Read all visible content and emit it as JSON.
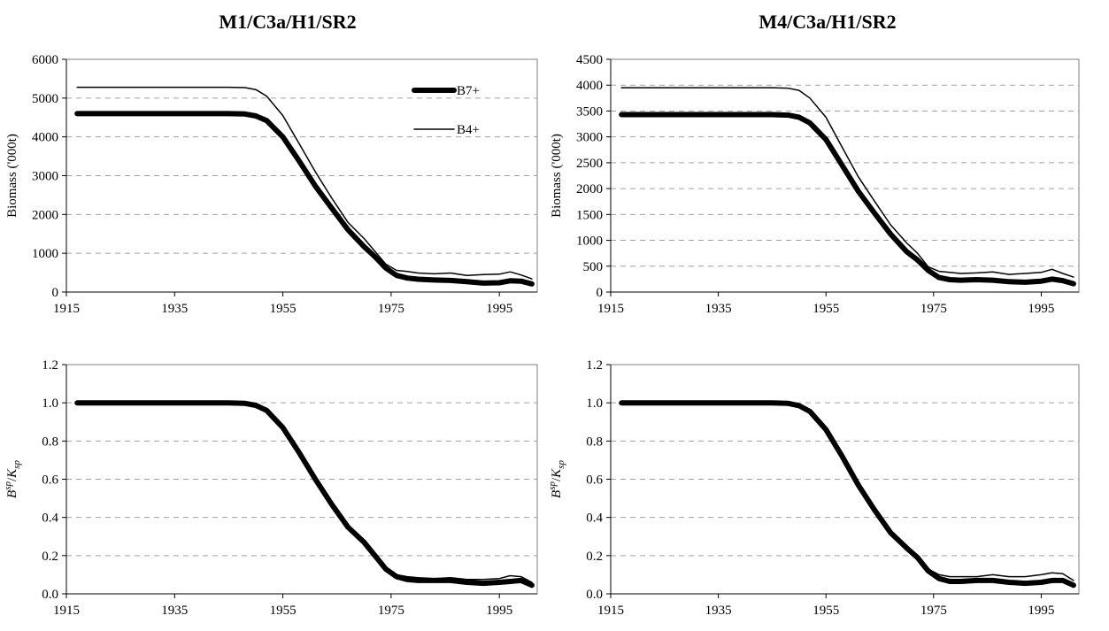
{
  "titles": {
    "left": "M1/C3a/H1/SR2",
    "right": "M4/C3a/H1/SR2"
  },
  "chart_data": [
    {
      "type": "line",
      "title": "M1/C3a/H1/SR2",
      "ylabel": "Biomass ('000t)",
      "xlim": [
        1915,
        2002
      ],
      "ylim": [
        0,
        6000
      ],
      "xticks": [
        1915,
        1935,
        1955,
        1975,
        1995
      ],
      "yticks": [
        0,
        1000,
        2000,
        3000,
        4000,
        5000,
        6000
      ],
      "ytick_labels": [
        "0",
        "1000",
        "2000",
        "3000",
        "4000",
        "5000",
        "6000"
      ],
      "grid": "horizontal dashed",
      "legend": "top-right",
      "series": [
        {
          "name": "B7+",
          "style": "thick",
          "x": [
            1917,
            1930,
            1945,
            1948,
            1950,
            1952,
            1955,
            1958,
            1961,
            1964,
            1967,
            1970,
            1972,
            1974,
            1976,
            1978,
            1980,
            1983,
            1986,
            1989,
            1992,
            1995,
            1997,
            1999,
            2001
          ],
          "y": [
            4600,
            4600,
            4600,
            4590,
            4540,
            4420,
            4000,
            3380,
            2730,
            2170,
            1610,
            1170,
            910,
            620,
            430,
            360,
            330,
            310,
            300,
            270,
            230,
            240,
            290,
            280,
            210
          ]
        },
        {
          "name": "B4+",
          "style": "thin",
          "x": [
            1917,
            1930,
            1945,
            1948,
            1950,
            1952,
            1955,
            1958,
            1961,
            1964,
            1967,
            1970,
            1972,
            1974,
            1976,
            1978,
            1980,
            1983,
            1986,
            1989,
            1992,
            1995,
            1997,
            1999,
            2001
          ],
          "y": [
            5280,
            5280,
            5280,
            5270,
            5220,
            5050,
            4550,
            3830,
            3100,
            2430,
            1800,
            1380,
            1050,
            720,
            560,
            530,
            490,
            470,
            490,
            430,
            450,
            460,
            520,
            440,
            340
          ]
        }
      ]
    },
    {
      "type": "line",
      "title": "M4/C3a/H1/SR2",
      "ylabel": "Biomass ('000t)",
      "xlim": [
        1915,
        2002
      ],
      "ylim": [
        0,
        4500
      ],
      "xticks": [
        1915,
        1935,
        1955,
        1975,
        1995
      ],
      "yticks": [
        0,
        500,
        1000,
        1500,
        2000,
        2500,
        3000,
        3500,
        4000,
        4500
      ],
      "ytick_labels": [
        "0",
        "500",
        "1000",
        "1500",
        "2000",
        "2500",
        "3000",
        "3500",
        "4000",
        "4500"
      ],
      "grid": "horizontal dashed",
      "series": [
        {
          "name": "B7+",
          "style": "thick",
          "x": [
            1917,
            1930,
            1945,
            1948,
            1950,
            1952,
            1955,
            1958,
            1961,
            1964,
            1967,
            1970,
            1972,
            1974,
            1976,
            1978,
            1980,
            1983,
            1986,
            1989,
            1992,
            1995,
            1997,
            1999,
            2001
          ],
          "y": [
            3430,
            3430,
            3430,
            3420,
            3380,
            3270,
            2950,
            2450,
            1950,
            1530,
            1120,
            780,
            620,
            420,
            280,
            240,
            230,
            240,
            230,
            200,
            190,
            210,
            250,
            220,
            160
          ]
        },
        {
          "name": "B4+",
          "style": "thin",
          "x": [
            1917,
            1930,
            1945,
            1948,
            1950,
            1952,
            1955,
            1958,
            1961,
            1964,
            1967,
            1970,
            1972,
            1974,
            1976,
            1978,
            1980,
            1983,
            1986,
            1989,
            1992,
            1995,
            1997,
            1999,
            2001
          ],
          "y": [
            3950,
            3950,
            3950,
            3940,
            3900,
            3750,
            3380,
            2800,
            2230,
            1760,
            1300,
            950,
            750,
            490,
            400,
            380,
            360,
            370,
            390,
            340,
            360,
            380,
            440,
            360,
            290
          ]
        }
      ]
    },
    {
      "type": "line",
      "title": "",
      "ylabel": "B^sp/K_sp",
      "xlim": [
        1915,
        2002
      ],
      "ylim": [
        0,
        1.2
      ],
      "xticks": [
        1915,
        1935,
        1955,
        1975,
        1995
      ],
      "yticks": [
        0,
        0.2,
        0.4,
        0.6,
        0.8,
        1.0,
        1.2
      ],
      "ytick_labels": [
        "0.0",
        "0.2",
        "0.4",
        "0.6",
        "0.8",
        "1.0",
        "1.2"
      ],
      "grid": "horizontal dashed",
      "series": [
        {
          "style": "thick",
          "x": [
            1917,
            1930,
            1945,
            1948,
            1950,
            1952,
            1955,
            1958,
            1961,
            1964,
            1967,
            1970,
            1972,
            1974,
            1976,
            1978,
            1980,
            1983,
            1986,
            1989,
            1992,
            1995,
            1997,
            1999,
            2001
          ],
          "y": [
            1.0,
            1.0,
            1.0,
            0.997,
            0.987,
            0.96,
            0.87,
            0.74,
            0.6,
            0.47,
            0.35,
            0.27,
            0.2,
            0.13,
            0.09,
            0.075,
            0.07,
            0.07,
            0.07,
            0.06,
            0.055,
            0.06,
            0.065,
            0.07,
            0.045
          ]
        },
        {
          "style": "thin",
          "x": [
            1917,
            1930,
            1945,
            1948,
            1950,
            1952,
            1955,
            1958,
            1961,
            1964,
            1967,
            1970,
            1972,
            1974,
            1976,
            1978,
            1980,
            1983,
            1986,
            1989,
            1992,
            1995,
            1997,
            1999,
            2001
          ],
          "y": [
            1.0,
            1.0,
            1.0,
            0.997,
            0.988,
            0.962,
            0.875,
            0.745,
            0.605,
            0.48,
            0.36,
            0.275,
            0.21,
            0.14,
            0.1,
            0.09,
            0.085,
            0.08,
            0.085,
            0.075,
            0.075,
            0.08,
            0.095,
            0.09,
            0.06
          ]
        }
      ]
    },
    {
      "type": "line",
      "title": "",
      "ylabel": "B^sp/K_sp",
      "xlim": [
        1915,
        2002
      ],
      "ylim": [
        0,
        1.2
      ],
      "xticks": [
        1915,
        1935,
        1955,
        1975,
        1995
      ],
      "yticks": [
        0,
        0.2,
        0.4,
        0.6,
        0.8,
        1.0,
        1.2
      ],
      "ytick_labels": [
        "0.0",
        "0.2",
        "0.4",
        "0.6",
        "0.8",
        "1.0",
        "1.2"
      ],
      "grid": "horizontal dashed",
      "series": [
        {
          "style": "thick",
          "x": [
            1917,
            1930,
            1945,
            1948,
            1950,
            1952,
            1955,
            1958,
            1961,
            1964,
            1967,
            1970,
            1972,
            1974,
            1976,
            1978,
            1980,
            1983,
            1986,
            1989,
            1992,
            1995,
            1997,
            1999,
            2001
          ],
          "y": [
            1.0,
            1.0,
            1.0,
            0.997,
            0.985,
            0.955,
            0.86,
            0.72,
            0.57,
            0.44,
            0.32,
            0.24,
            0.19,
            0.12,
            0.08,
            0.065,
            0.065,
            0.07,
            0.07,
            0.06,
            0.055,
            0.06,
            0.07,
            0.07,
            0.045
          ]
        },
        {
          "style": "thin",
          "x": [
            1917,
            1930,
            1945,
            1948,
            1950,
            1952,
            1955,
            1958,
            1961,
            1964,
            1967,
            1970,
            1972,
            1974,
            1976,
            1978,
            1980,
            1983,
            1986,
            1989,
            1992,
            1995,
            1997,
            1999,
            2001
          ],
          "y": [
            1.0,
            1.0,
            1.0,
            0.997,
            0.986,
            0.958,
            0.865,
            0.73,
            0.58,
            0.45,
            0.33,
            0.25,
            0.2,
            0.13,
            0.1,
            0.09,
            0.09,
            0.09,
            0.1,
            0.09,
            0.09,
            0.1,
            0.11,
            0.105,
            0.07
          ]
        }
      ]
    }
  ],
  "colors": {
    "line": "#000000",
    "grid": "#a0a0a0",
    "frame": "#808080"
  }
}
